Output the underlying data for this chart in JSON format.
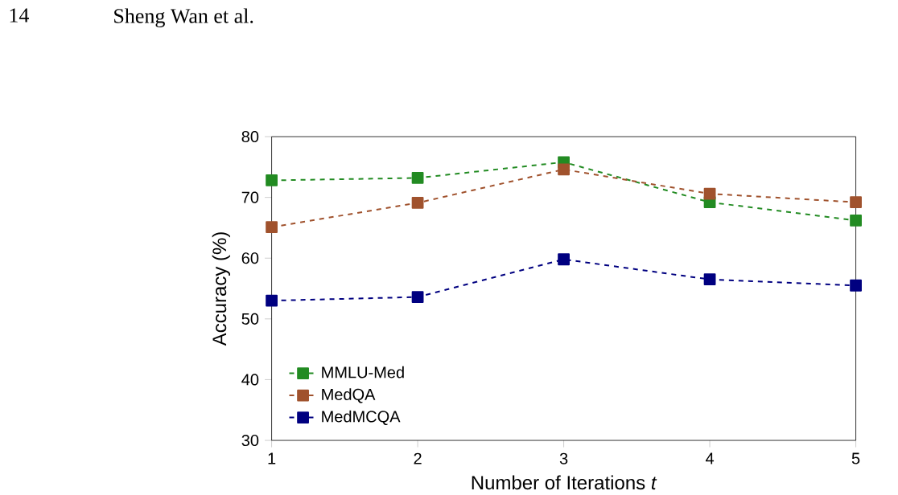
{
  "chart_data": {
    "type": "line",
    "xlabel": "Number of Iterations *t*",
    "ylabel": "Accuracy (%)",
    "annotations": [
      "14",
      "Sheng Wan et al."
    ],
    "x": [
      1,
      2,
      3,
      4,
      5
    ],
    "series": [
      {
        "name": "MMLU-Med",
        "color": "#228b22",
        "values": [
          72.8,
          73.2,
          75.8,
          69.2,
          66.2
        ]
      },
      {
        "name": "MedQA",
        "color": "#a0522d",
        "values": [
          65.1,
          69.1,
          74.6,
          70.6,
          69.2
        ]
      },
      {
        "name": "MedMCQA",
        "color": "#000080",
        "values": [
          53.0,
          53.6,
          59.8,
          56.5,
          55.5
        ]
      }
    ],
    "xlim": [
      1,
      5
    ],
    "xticks": [
      1,
      2,
      3,
      4,
      5
    ],
    "ylim": [
      30,
      80
    ],
    "yticks": [
      30,
      40,
      50,
      60,
      70,
      80
    ],
    "legend": "bottom left",
    "marker": "square",
    "line_style": "dashed",
    "grid": false
  }
}
